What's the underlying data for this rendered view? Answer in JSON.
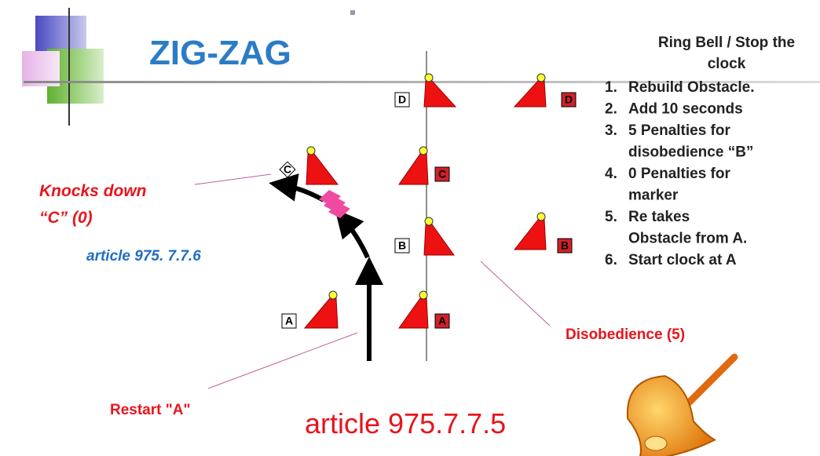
{
  "header": {
    "title": "ZIG-ZAG"
  },
  "cones": [
    {
      "label": "C"
    },
    {
      "label": "A"
    },
    {
      "label": "D"
    },
    {
      "label": "C"
    },
    {
      "label": "B"
    },
    {
      "label": "A"
    },
    {
      "label": "D"
    },
    {
      "label": "B"
    }
  ],
  "annotations": {
    "knocks_down": [
      "Knocks down",
      "“C” (0)"
    ],
    "article_upper": "article 975. 7.7.6",
    "restart": "Restart \"A\"",
    "disobedience": "Disobedience (5)",
    "article_lower": "article 975.7.7.5"
  },
  "panel": {
    "title": [
      "Ring Bell / Stop the",
      "clock"
    ],
    "items": [
      {
        "number": "1.",
        "lines": [
          "Rebuild Obstacle."
        ]
      },
      {
        "number": "2.",
        "lines": [
          "Add 10 seconds"
        ]
      },
      {
        "number": "3.",
        "lines": [
          "5 Penalties for",
          "disobedience “B”"
        ]
      },
      {
        "number": "4.",
        "lines": [
          "0 Penalties for",
          "marker"
        ]
      },
      {
        "number": "5.",
        "lines": [
          "Re takes",
          "Obstacle from A."
        ]
      },
      {
        "number": "6.",
        "lines": [
          "Start clock at A"
        ]
      }
    ]
  }
}
